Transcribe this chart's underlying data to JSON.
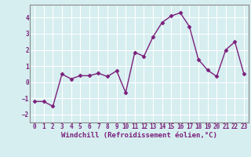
{
  "x": [
    0,
    1,
    2,
    3,
    4,
    5,
    6,
    7,
    8,
    9,
    10,
    11,
    12,
    13,
    14,
    15,
    16,
    17,
    18,
    19,
    20,
    21,
    22,
    23
  ],
  "y": [
    -1.2,
    -1.2,
    -1.5,
    0.5,
    0.2,
    0.4,
    0.4,
    0.55,
    0.35,
    0.7,
    -0.65,
    1.85,
    1.6,
    2.8,
    3.7,
    4.1,
    4.3,
    3.45,
    1.4,
    0.75,
    0.35,
    2.0,
    2.5,
    0.5
  ],
  "line_color": "#7b1f7b",
  "marker": "D",
  "markersize": 2.5,
  "linewidth": 1.0,
  "xlabel": "Windchill (Refroidissement éolien,°C)",
  "xlabel_fontsize": 6.5,
  "xlim": [
    -0.5,
    23.5
  ],
  "ylim": [
    -2.5,
    4.8
  ],
  "yticks": [
    -2,
    -1,
    0,
    1,
    2,
    3,
    4
  ],
  "xticks": [
    0,
    1,
    2,
    3,
    4,
    5,
    6,
    7,
    8,
    9,
    10,
    11,
    12,
    13,
    14,
    15,
    16,
    17,
    18,
    19,
    20,
    21,
    22,
    23
  ],
  "tick_fontsize": 5.5,
  "bg_color": "#d6eef0",
  "grid_color": "#ffffff",
  "spine_color": "#888888"
}
